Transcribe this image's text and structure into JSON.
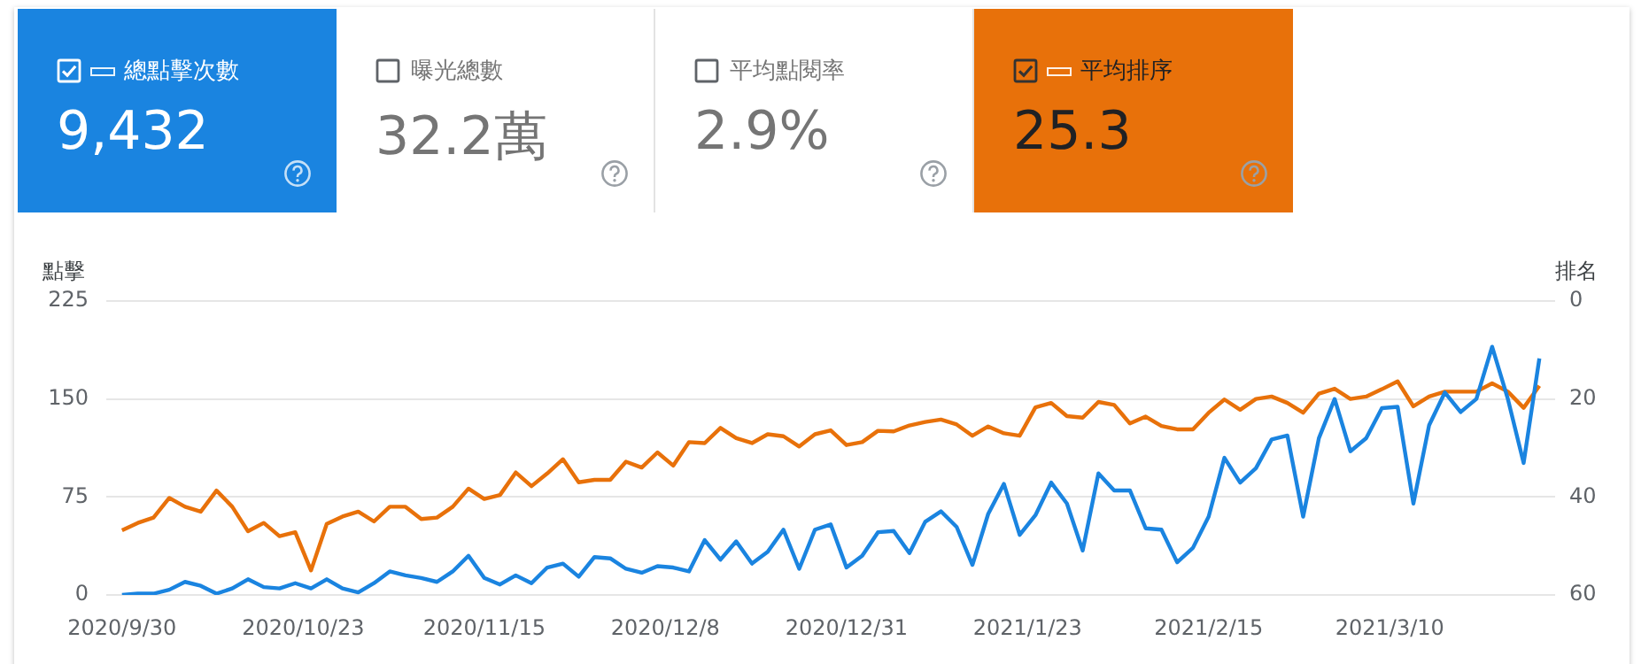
{
  "chart_data": {
    "type": "line",
    "ylabel": "點擊",
    "y2label": "排名",
    "legend": "top",
    "grid": "y",
    "annotations": [
      "9,432",
      "曝光總數",
      "32.2萬",
      "平均點閱率",
      "2.9%",
      "25.3"
    ],
    "x": [
      "2020-09-30",
      "2020-10-02",
      "2020-10-04",
      "2020-10-06",
      "2020-10-08",
      "2020-10-10",
      "2020-10-12",
      "2020-10-14",
      "2020-10-16",
      "2020-10-18",
      "2020-10-20",
      "2020-10-22",
      "2020-10-24",
      "2020-10-26",
      "2020-10-28",
      "2020-10-30",
      "2020-11-01",
      "2020-11-03",
      "2020-11-05",
      "2020-11-07",
      "2020-11-09",
      "2020-11-11",
      "2020-11-13",
      "2020-11-15",
      "2020-11-17",
      "2020-11-19",
      "2020-11-21",
      "2020-11-23",
      "2020-11-25",
      "2020-11-27",
      "2020-11-29",
      "2020-12-01",
      "2020-12-03",
      "2020-12-05",
      "2020-12-07",
      "2020-12-09",
      "2020-12-11",
      "2020-12-13",
      "2020-12-15",
      "2020-12-17",
      "2020-12-19",
      "2020-12-21",
      "2020-12-23",
      "2020-12-25",
      "2020-12-27",
      "2020-12-29",
      "2020-12-31",
      "2021-01-02",
      "2021-01-04",
      "2021-01-06",
      "2021-01-08",
      "2021-01-10",
      "2021-01-12",
      "2021-01-14",
      "2021-01-16",
      "2021-01-18",
      "2021-01-20",
      "2021-01-22",
      "2021-01-24",
      "2021-01-26",
      "2021-01-28",
      "2021-01-30",
      "2021-02-01",
      "2021-02-03",
      "2021-02-05",
      "2021-02-07",
      "2021-02-09",
      "2021-02-11",
      "2021-02-13",
      "2021-02-15",
      "2021-02-17",
      "2021-02-19",
      "2021-02-21",
      "2021-02-23",
      "2021-02-25",
      "2021-02-27",
      "2021-03-01",
      "2021-03-03",
      "2021-03-05",
      "2021-03-07",
      "2021-03-09",
      "2021-03-11",
      "2021-03-13",
      "2021-03-15",
      "2021-03-17",
      "2021-03-19",
      "2021-03-21",
      "2021-03-23",
      "2021-03-25",
      "2021-03-27",
      "2021-03-29"
    ],
    "series": [
      {
        "name": "總點擊次數",
        "color": "#1a84e0",
        "values": [
          0,
          1,
          1,
          4,
          10,
          7,
          1,
          5,
          12,
          6,
          5,
          9,
          5,
          12,
          5,
          2,
          9,
          18,
          15,
          13,
          10,
          18,
          30,
          13,
          8,
          15,
          9,
          21,
          24,
          14,
          29,
          28,
          20,
          17,
          22,
          21,
          18,
          42,
          27,
          41,
          24,
          33,
          50,
          20,
          50,
          54,
          21,
          30,
          48,
          49,
          32,
          56,
          64,
          52,
          23,
          62,
          85,
          46,
          61,
          86,
          70,
          34,
          93,
          80,
          80,
          51,
          50,
          25,
          36,
          60,
          105,
          86,
          97,
          119,
          122,
          60,
          120,
          150,
          110,
          120,
          143,
          144,
          70,
          130,
          155,
          140,
          150,
          190,
          150,
          101,
          181
        ]
      },
      {
        "name": "平均排序",
        "color": "#e8710a",
        "axis": "y2",
        "values": [
          46.8,
          45.3,
          44.2,
          40.2,
          42,
          43,
          38.7,
          42,
          47,
          45.3,
          48,
          47.2,
          55,
          45.5,
          44,
          43,
          45,
          42,
          42,
          44.5,
          44.2,
          42,
          38.3,
          40.4,
          39.6,
          35,
          37.8,
          35.2,
          32.3,
          37,
          36.5,
          36.5,
          32.8,
          34,
          30.9,
          33.6,
          28.8,
          29,
          25.9,
          28,
          29,
          27.2,
          27.6,
          29.7,
          27.2,
          26.4,
          29.4,
          28.8,
          26.5,
          26.6,
          25.4,
          24.7,
          24.2,
          25.2,
          27.5,
          25.6,
          27,
          27.5,
          21.7,
          20.8,
          23.5,
          23.8,
          20.6,
          21.2,
          25,
          23.6,
          25.5,
          26.2,
          26.2,
          22.8,
          20.1,
          22.2,
          20,
          19.5,
          20.8,
          22.8,
          18.9,
          17.9,
          20,
          19.5,
          18,
          16.4,
          21.5,
          19.5,
          18.5,
          18.5,
          18.5,
          16.8,
          18.5,
          21.8,
          17.3
        ]
      }
    ],
    "xlim": [
      "2020-09-28",
      "2021-03-31"
    ],
    "xticks": [
      {
        "value": "2020-09-30",
        "label": "2020/9/30"
      },
      {
        "value": "2020-10-23",
        "label": "2020/10/23"
      },
      {
        "value": "2020-11-15",
        "label": "2020/11/15"
      },
      {
        "value": "2020-12-08",
        "label": "2020/12/8"
      },
      {
        "value": "2020-12-31",
        "label": "2020/12/31"
      },
      {
        "value": "2021-01-23",
        "label": "2021/1/23"
      },
      {
        "value": "2021-02-15",
        "label": "2021/2/15"
      },
      {
        "value": "2021-03-10",
        "label": "2021/3/10"
      }
    ],
    "ylim": [
      0,
      225
    ],
    "yticks": [
      0,
      75,
      150,
      225
    ],
    "y2lim": [
      60,
      0
    ],
    "y2ticks": [
      0,
      20,
      40,
      60
    ]
  }
}
